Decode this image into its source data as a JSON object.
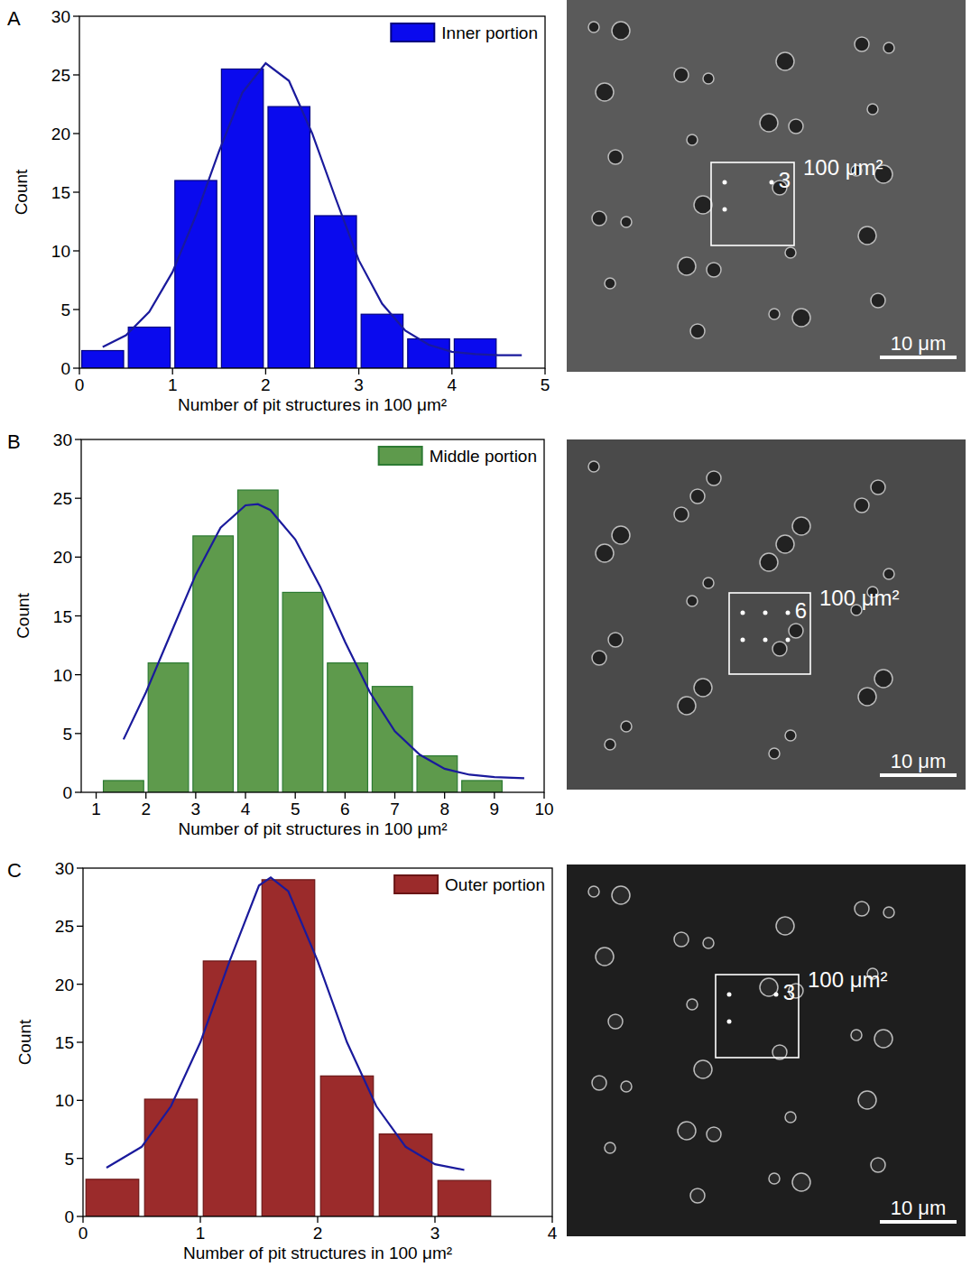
{
  "chart_data": [
    {
      "type": "histogram",
      "panel": "A",
      "x_label": "Number of pit structures in 100 μm²",
      "y_label": "Count",
      "bins": [
        0,
        0.5,
        1,
        1.5,
        2,
        2.5,
        3,
        3.5,
        4,
        4.5
      ],
      "xlim": [
        0,
        5
      ],
      "xticks": [
        0,
        1,
        2,
        3,
        4,
        5
      ],
      "ylim": [
        0,
        30
      ],
      "yticks": [
        0,
        5,
        10,
        15,
        20,
        25,
        30
      ],
      "legend": "top-right",
      "series": [
        {
          "name": "Inner portion",
          "type": "bar",
          "color": "#0a0aee",
          "values": [
            1.5,
            3.5,
            16,
            25.5,
            22.3,
            13,
            4.6,
            2.5,
            2.5
          ]
        },
        {
          "type": "line",
          "color": "#1a1a9c",
          "x": [
            0.25,
            0.5,
            0.75,
            1.0,
            1.25,
            1.5,
            1.75,
            2.0,
            2.25,
            2.5,
            2.75,
            3.0,
            3.25,
            3.5,
            3.75,
            4.0,
            4.25,
            4.5,
            4.75
          ],
          "values": [
            1.8,
            2.8,
            4.8,
            8.2,
            13,
            18.5,
            23.5,
            26,
            24.5,
            20,
            14.5,
            9.2,
            5.5,
            3.2,
            2,
            1.4,
            1.2,
            1.1,
            1.1
          ]
        }
      ]
    },
    {
      "type": "histogram",
      "panel": "B",
      "x_label": "Number of pit structures in 100 μm²",
      "y_label": "Count",
      "bins": [
        1.1,
        2.0,
        2.9,
        3.8,
        4.7,
        5.6,
        6.5,
        7.4,
        8.3,
        9.2
      ],
      "xlim": [
        0.7,
        10
      ],
      "xticks": [
        1,
        2,
        3,
        4,
        5,
        6,
        7,
        8,
        9,
        10
      ],
      "ylim": [
        0,
        30
      ],
      "yticks": [
        0,
        5,
        10,
        15,
        20,
        25,
        30
      ],
      "legend": "top-right",
      "series": [
        {
          "name": "Middle portion",
          "type": "bar",
          "color": "#5e9a4c",
          "values": [
            1,
            11,
            21.8,
            25.7,
            17,
            11,
            9,
            3.1,
            1
          ]
        },
        {
          "type": "line",
          "color": "#1a1a9c",
          "x": [
            1.55,
            2,
            2.5,
            3,
            3.5,
            4,
            4.25,
            4.5,
            5,
            5.5,
            6,
            6.5,
            7,
            7.5,
            8,
            8.5,
            9,
            9.6
          ],
          "values": [
            4.5,
            8.5,
            13.5,
            18.5,
            22.5,
            24.4,
            24.5,
            24,
            21.5,
            17.5,
            12.8,
            8.5,
            5.2,
            3.2,
            2,
            1.5,
            1.3,
            1.2
          ]
        }
      ]
    },
    {
      "type": "histogram",
      "panel": "C",
      "x_label": "Number of pit structures in 100 μm²",
      "y_label": "Count",
      "bins": [
        0,
        0.5,
        1,
        1.5,
        2,
        2.5,
        3,
        3.5
      ],
      "xlim": [
        0,
        4
      ],
      "xticks": [
        0,
        1,
        2,
        3,
        4
      ],
      "ylim": [
        0,
        30
      ],
      "yticks": [
        0,
        5,
        10,
        15,
        20,
        25,
        30
      ],
      "legend": "top-right",
      "series": [
        {
          "name": "Outer portion",
          "type": "bar",
          "color": "#9b2b2b",
          "values": [
            3.2,
            10.1,
            22,
            29,
            12.1,
            7.1,
            3.1
          ]
        },
        {
          "type": "line",
          "color": "#1a1a9c",
          "x": [
            0.2,
            0.5,
            0.75,
            1.0,
            1.25,
            1.5,
            1.6,
            1.75,
            2.0,
            2.25,
            2.5,
            2.75,
            3.0,
            3.25
          ],
          "values": [
            4.2,
            6,
            9.5,
            15,
            22,
            28.5,
            29.2,
            28,
            22,
            15,
            9.5,
            6,
            4.5,
            4
          ]
        }
      ]
    }
  ],
  "images": [
    {
      "count": 3,
      "area_label": "100 μm²",
      "scale_bar": "10 μm"
    },
    {
      "count": 6,
      "area_label": "100 μm²",
      "scale_bar": "10 μm"
    },
    {
      "count": 3,
      "area_label": "100 μm²",
      "scale_bar": "10 μm"
    }
  ]
}
